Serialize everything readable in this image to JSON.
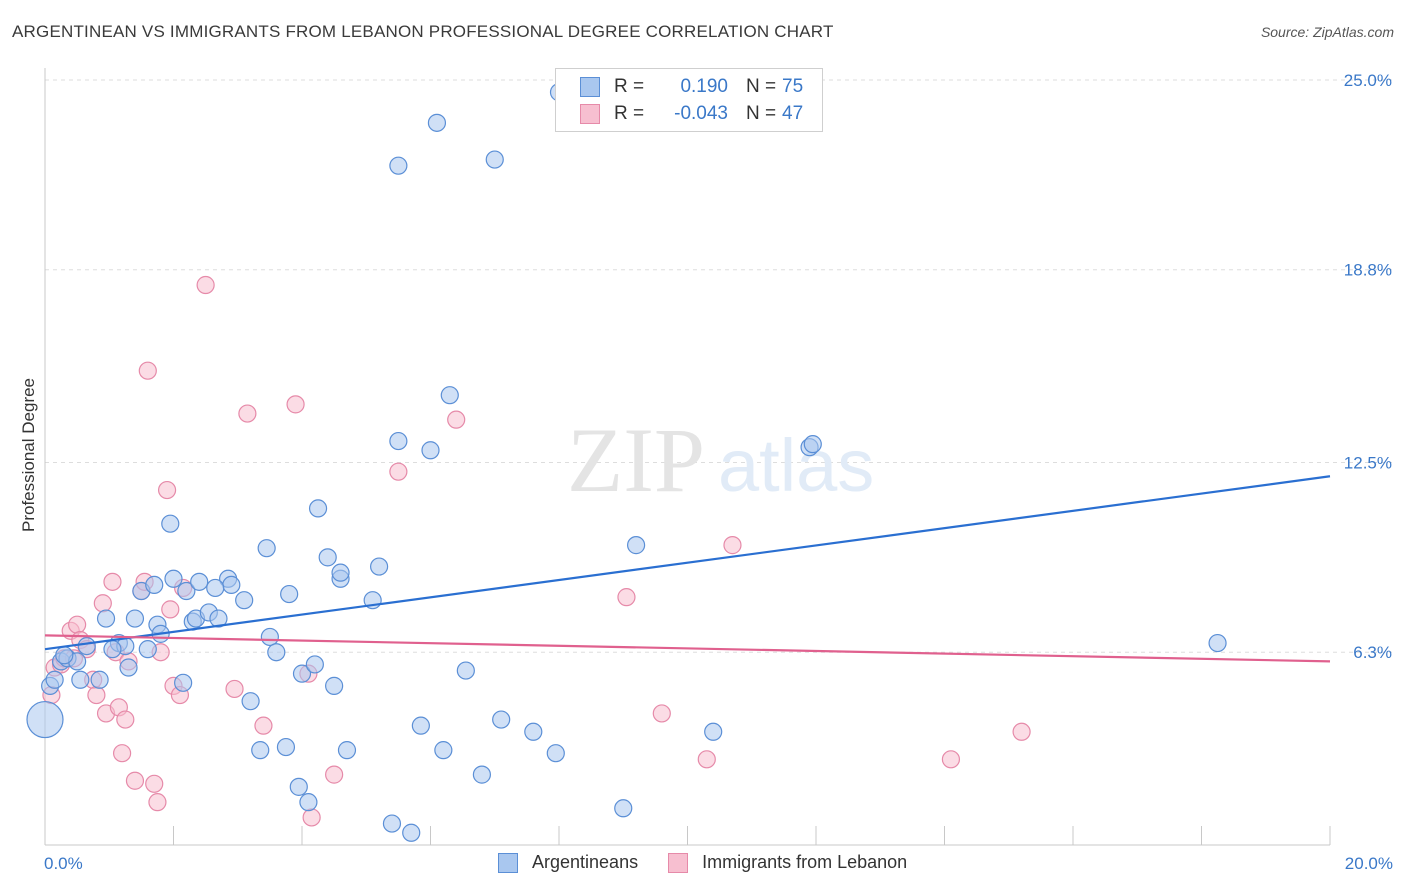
{
  "header": {
    "title": "ARGENTINEAN VS IMMIGRANTS FROM LEBANON PROFESSIONAL DEGREE CORRELATION CHART",
    "source": "Source: ZipAtlas.com"
  },
  "watermark": {
    "zip": "ZIP",
    "atlas": "atlas"
  },
  "legend": {
    "rows": [
      {
        "r_label": "R =",
        "r_value": "0.190",
        "n_label": "N =",
        "n_value": "75"
      },
      {
        "r_label": "R =",
        "r_value": "-0.043",
        "n_label": "N =",
        "n_value": "47"
      }
    ]
  },
  "bottom_legend": {
    "series1": "Argentineans",
    "series2": "Immigrants from Lebanon"
  },
  "colors": {
    "blue_fill": "#a9c7ef",
    "blue_stroke": "#5b8fd6",
    "blue_line": "#2a6fd1",
    "pink_fill": "#f7bfd0",
    "pink_stroke": "#e68aa9",
    "pink_line": "#e0608e",
    "tick_label": "#3a78c8",
    "grid": "#dddddd"
  },
  "chart_data": {
    "type": "scatter",
    "title": "ARGENTINEAN VS IMMIGRANTS FROM LEBANON PROFESSIONAL DEGREE CORRELATION CHART",
    "xlabel": "",
    "ylabel": "Professional Degree",
    "xlim": [
      0,
      20
    ],
    "ylim": [
      0,
      25
    ],
    "x_tick_labels": [
      "0.0%",
      "20.0%"
    ],
    "y_ticks": [
      6.3,
      12.5,
      18.8,
      25.0
    ],
    "y_tick_labels": [
      "6.3%",
      "12.5%",
      "18.8%",
      "25.0%"
    ],
    "grid": true,
    "series": [
      {
        "name": "Argentineans",
        "r": 0.19,
        "n": 75,
        "trend": {
          "x": [
            0,
            20
          ],
          "y": [
            6.4,
            12.05
          ]
        },
        "points": [
          [
            0.08,
            5.2
          ],
          [
            0.0,
            4.1
          ],
          [
            0.15,
            5.4
          ],
          [
            0.25,
            6.0
          ],
          [
            0.35,
            6.1
          ],
          [
            0.5,
            6.0
          ],
          [
            0.55,
            5.4
          ],
          [
            0.65,
            6.5
          ],
          [
            0.85,
            5.4
          ],
          [
            0.95,
            7.4
          ],
          [
            1.15,
            6.6
          ],
          [
            1.25,
            6.5
          ],
          [
            1.3,
            5.8
          ],
          [
            1.4,
            7.4
          ],
          [
            1.5,
            8.3
          ],
          [
            1.6,
            6.4
          ],
          [
            1.7,
            8.5
          ],
          [
            1.75,
            7.2
          ],
          [
            1.8,
            6.9
          ],
          [
            1.95,
            10.5
          ],
          [
            2.0,
            8.7
          ],
          [
            2.15,
            5.3
          ],
          [
            2.2,
            8.3
          ],
          [
            2.3,
            7.3
          ],
          [
            2.35,
            7.4
          ],
          [
            2.4,
            8.6
          ],
          [
            2.55,
            7.6
          ],
          [
            2.7,
            7.4
          ],
          [
            2.85,
            8.7
          ],
          [
            2.9,
            8.5
          ],
          [
            3.1,
            8.0
          ],
          [
            3.2,
            4.7
          ],
          [
            3.35,
            3.1
          ],
          [
            3.45,
            9.7
          ],
          [
            3.5,
            6.8
          ],
          [
            3.6,
            6.3
          ],
          [
            3.75,
            3.2
          ],
          [
            3.8,
            8.2
          ],
          [
            3.95,
            1.9
          ],
          [
            4.0,
            5.6
          ],
          [
            4.1,
            1.4
          ],
          [
            4.2,
            5.9
          ],
          [
            4.25,
            11.0
          ],
          [
            4.4,
            9.4
          ],
          [
            4.5,
            5.2
          ],
          [
            4.6,
            8.7
          ],
          [
            4.6,
            8.9
          ],
          [
            4.7,
            3.1
          ],
          [
            5.1,
            8.0
          ],
          [
            5.2,
            9.1
          ],
          [
            5.4,
            0.7
          ],
          [
            5.5,
            13.2
          ],
          [
            5.5,
            22.2
          ],
          [
            5.7,
            0.4
          ],
          [
            5.85,
            3.9
          ],
          [
            6.0,
            12.9
          ],
          [
            6.1,
            23.6
          ],
          [
            6.2,
            3.1
          ],
          [
            6.3,
            14.7
          ],
          [
            6.55,
            5.7
          ],
          [
            6.8,
            2.3
          ],
          [
            7.0,
            22.4
          ],
          [
            7.1,
            4.1
          ],
          [
            7.6,
            3.7
          ],
          [
            7.95,
            3.0
          ],
          [
            8.0,
            24.6
          ],
          [
            9.0,
            1.2
          ],
          [
            9.2,
            9.8
          ],
          [
            10.4,
            3.7
          ],
          [
            11.9,
            13.0
          ],
          [
            11.95,
            13.1
          ],
          [
            18.25,
            6.6
          ],
          [
            0.3,
            6.2
          ],
          [
            1.05,
            6.4
          ],
          [
            2.65,
            8.4
          ]
        ]
      },
      {
        "name": "Immigrants from Lebanon",
        "r": -0.043,
        "n": 47,
        "trend": {
          "x": [
            0,
            20
          ],
          "y": [
            6.85,
            6.0
          ]
        },
        "points": [
          [
            0.1,
            4.9
          ],
          [
            0.15,
            5.8
          ],
          [
            0.25,
            5.9
          ],
          [
            0.3,
            6.1
          ],
          [
            0.4,
            7.0
          ],
          [
            0.5,
            7.2
          ],
          [
            0.55,
            6.7
          ],
          [
            0.65,
            6.4
          ],
          [
            0.75,
            5.4
          ],
          [
            0.8,
            4.9
          ],
          [
            0.9,
            7.9
          ],
          [
            0.95,
            4.3
          ],
          [
            1.05,
            8.6
          ],
          [
            1.1,
            6.3
          ],
          [
            1.15,
            4.5
          ],
          [
            1.2,
            3.0
          ],
          [
            1.25,
            4.1
          ],
          [
            1.3,
            6.0
          ],
          [
            1.4,
            2.1
          ],
          [
            1.5,
            8.3
          ],
          [
            1.55,
            8.6
          ],
          [
            1.6,
            15.5
          ],
          [
            1.7,
            2.0
          ],
          [
            1.75,
            1.4
          ],
          [
            1.8,
            6.3
          ],
          [
            1.9,
            11.6
          ],
          [
            1.95,
            7.7
          ],
          [
            2.0,
            5.2
          ],
          [
            2.1,
            4.9
          ],
          [
            2.15,
            8.4
          ],
          [
            2.5,
            18.3
          ],
          [
            2.95,
            5.1
          ],
          [
            3.15,
            14.1
          ],
          [
            3.4,
            3.9
          ],
          [
            3.9,
            14.4
          ],
          [
            4.1,
            5.6
          ],
          [
            4.15,
            0.9
          ],
          [
            4.5,
            2.3
          ],
          [
            5.5,
            12.2
          ],
          [
            6.4,
            13.9
          ],
          [
            9.05,
            8.1
          ],
          [
            9.6,
            4.3
          ],
          [
            10.3,
            2.8
          ],
          [
            10.7,
            9.8
          ],
          [
            14.1,
            2.8
          ],
          [
            15.2,
            3.7
          ],
          [
            0.45,
            6.1
          ]
        ]
      }
    ]
  }
}
